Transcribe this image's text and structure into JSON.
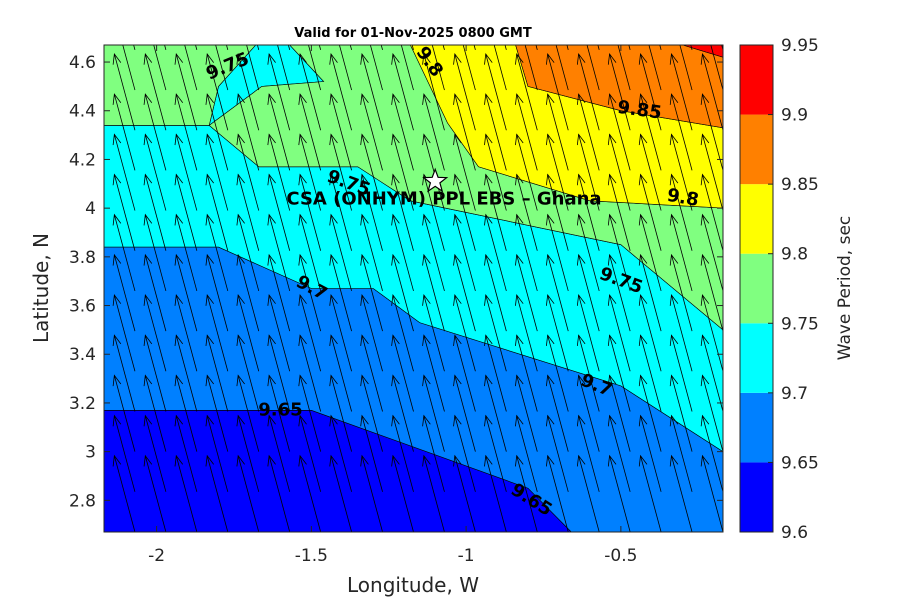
{
  "chart_data": {
    "type": "filled-contour",
    "title": "Valid for 01-Nov-2025 0800 GMT",
    "xlabel": "Longitude, W",
    "ylabel": "Latitude, N",
    "xlim": [
      -2.17,
      -0.17
    ],
    "ylim": [
      2.67,
      4.67
    ],
    "xticks": [
      -2,
      -1.5,
      -1,
      -0.5
    ],
    "xtick_labels": [
      "-2",
      "-1.5",
      "-1",
      "-0.5"
    ],
    "yticks": [
      2.8,
      3.0,
      3.2,
      3.4,
      3.6,
      3.8,
      4.0,
      4.2,
      4.4,
      4.6
    ],
    "ytick_labels": [
      "2.8",
      "3",
      "3.2",
      "3.4",
      "3.6",
      "3.8",
      "4",
      "4.2",
      "4.4",
      "4.6"
    ],
    "colorbar": {
      "label": "Wave Period, sec",
      "levels": [
        9.6,
        9.65,
        9.7,
        9.75,
        9.8,
        9.85,
        9.9,
        9.95
      ],
      "tick_labels": [
        "9.6",
        "9.65",
        "9.7",
        "9.75",
        "9.8",
        "9.85",
        "9.9",
        "9.95"
      ],
      "colors": [
        "#0000ff",
        "#0080ff",
        "#00ffff",
        "#80ff80",
        "#ffff00",
        "#ff8000",
        "#ff0000"
      ]
    },
    "bands": [
      {
        "level": 9.6,
        "color": "#0000ff",
        "boundary": [
          [
            -2.17,
            2.67
          ],
          [
            -2.17,
            3.17
          ],
          [
            -1.5,
            3.17
          ],
          [
            -0.8,
            2.85
          ],
          [
            -0.66,
            2.67
          ]
        ]
      },
      {
        "level": 9.65,
        "color": "#0080ff",
        "boundary": [
          [
            -2.17,
            3.17
          ],
          [
            -2.17,
            3.84
          ],
          [
            -1.8,
            3.84
          ],
          [
            -1.5,
            3.67
          ],
          [
            -1.3,
            3.67
          ],
          [
            -1.15,
            3.53
          ],
          [
            -0.5,
            3.27
          ],
          [
            -0.17,
            3.0
          ],
          [
            -0.17,
            2.67
          ],
          [
            -0.66,
            2.67
          ],
          [
            -0.8,
            2.85
          ],
          [
            -1.5,
            3.17
          ]
        ]
      },
      {
        "level": 9.7,
        "color": "#00ffff",
        "boundary": [
          [
            -2.17,
            3.84
          ],
          [
            -2.17,
            4.34
          ],
          [
            -1.83,
            4.34
          ],
          [
            -1.67,
            4.17
          ],
          [
            -1.35,
            4.17
          ],
          [
            -1.18,
            4.03
          ],
          [
            -0.5,
            3.85
          ],
          [
            -0.17,
            3.5
          ],
          [
            -0.17,
            3.0
          ],
          [
            -0.5,
            3.27
          ],
          [
            -1.15,
            3.53
          ],
          [
            -1.3,
            3.67
          ],
          [
            -1.5,
            3.67
          ],
          [
            -1.8,
            3.84
          ]
        ]
      },
      {
        "level": 9.7,
        "color": "#00ffff",
        "boundary": [
          [
            -1.83,
            4.34
          ],
          [
            -1.8,
            4.5
          ],
          [
            -1.68,
            4.67
          ],
          [
            -1.57,
            4.67
          ],
          [
            -1.46,
            4.52
          ],
          [
            -1.66,
            4.5
          ]
        ]
      },
      {
        "level": 9.75,
        "color": "#80ff80",
        "boundary": [
          [
            -2.17,
            4.34
          ],
          [
            -2.17,
            4.67
          ],
          [
            -1.68,
            4.67
          ],
          [
            -1.8,
            4.5
          ],
          [
            -1.83,
            4.34
          ]
        ]
      },
      {
        "level": 9.75,
        "color": "#80ff80",
        "boundary": [
          [
            -1.83,
            4.34
          ],
          [
            -1.66,
            4.5
          ],
          [
            -1.46,
            4.52
          ],
          [
            -1.57,
            4.67
          ],
          [
            -1.18,
            4.67
          ],
          [
            -1.06,
            4.35
          ],
          [
            -0.96,
            4.17
          ],
          [
            -0.6,
            4.03
          ],
          [
            -0.17,
            4.0
          ],
          [
            -0.17,
            3.5
          ],
          [
            -0.5,
            3.85
          ],
          [
            -1.18,
            4.03
          ],
          [
            -1.35,
            4.17
          ],
          [
            -1.67,
            4.17
          ]
        ]
      },
      {
        "level": 9.8,
        "color": "#ffff00",
        "boundary": [
          [
            -1.18,
            4.67
          ],
          [
            -0.84,
            4.67
          ],
          [
            -0.8,
            4.5
          ],
          [
            -0.5,
            4.4
          ],
          [
            -0.17,
            4.33
          ],
          [
            -0.17,
            4.0
          ],
          [
            -0.6,
            4.03
          ],
          [
            -0.96,
            4.17
          ],
          [
            -1.06,
            4.35
          ]
        ]
      },
      {
        "level": 9.85,
        "color": "#ff8000",
        "boundary": [
          [
            -0.84,
            4.67
          ],
          [
            -0.3,
            4.67
          ],
          [
            -0.17,
            4.62
          ],
          [
            -0.17,
            4.33
          ],
          [
            -0.5,
            4.4
          ],
          [
            -0.8,
            4.5
          ]
        ]
      },
      {
        "level": 9.9,
        "color": "#ff0000",
        "boundary": [
          [
            -0.3,
            4.67
          ],
          [
            -0.17,
            4.67
          ],
          [
            -0.17,
            4.62
          ]
        ]
      }
    ],
    "contour_labels": [
      {
        "text": "9.75",
        "x": -1.77,
        "y": 4.58,
        "angle": -22
      },
      {
        "text": "9.8",
        "x": -1.12,
        "y": 4.6,
        "angle": 55
      },
      {
        "text": "9.75",
        "x": -1.38,
        "y": 4.1,
        "angle": 20
      },
      {
        "text": "9.85",
        "x": -0.44,
        "y": 4.4,
        "angle": 8
      },
      {
        "text": "9.8",
        "x": -0.3,
        "y": 4.04,
        "angle": 10
      },
      {
        "text": "9.75",
        "x": -0.5,
        "y": 3.7,
        "angle": 20
      },
      {
        "text": "9.7",
        "x": -1.5,
        "y": 3.67,
        "angle": 28
      },
      {
        "text": "9.7",
        "x": -0.58,
        "y": 3.27,
        "angle": 22
      },
      {
        "text": "9.65",
        "x": -1.6,
        "y": 3.17,
        "angle": 0
      },
      {
        "text": "9.65",
        "x": -0.79,
        "y": 2.8,
        "angle": 32
      }
    ],
    "site": {
      "label": "CSA (ONHYM) PPL EBS  – Ghana",
      "lon": -1.1,
      "lat": 4.11,
      "marker": "star"
    },
    "vector_field": {
      "description": "wave direction arrows, pointing north-northwest",
      "lon_start": -2.17,
      "lon_step": 0.1,
      "lon_count": 21,
      "lat_start": 2.67,
      "lat_step": 0.165,
      "lat_count": 13,
      "direction_deg_from_north": -12,
      "length_deg": 0.32
    }
  }
}
